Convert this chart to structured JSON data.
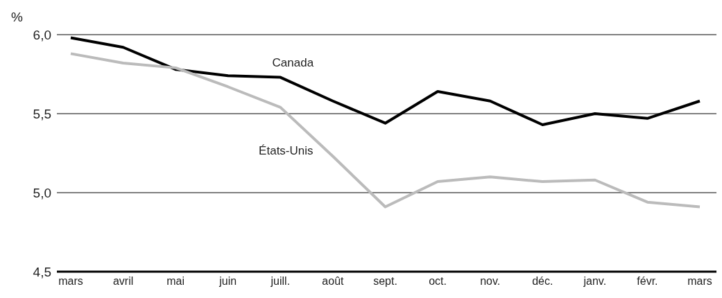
{
  "chart_data": {
    "type": "line",
    "ylabel": "%",
    "categories": [
      "mars",
      "avril",
      "mai",
      "juin",
      "juill.",
      "août",
      "sept.",
      "oct.",
      "nov.",
      "déc.",
      "janv.",
      "févr.",
      "mars"
    ],
    "series": [
      {
        "name": "Canada",
        "color": "#000000",
        "values": [
          5.98,
          5.92,
          5.78,
          5.74,
          5.73,
          5.58,
          5.44,
          5.64,
          5.58,
          5.43,
          5.5,
          5.47,
          5.58
        ]
      },
      {
        "name": "États-Unis",
        "color": "#bbbbbb",
        "values": [
          5.88,
          5.82,
          5.79,
          5.67,
          5.54,
          5.23,
          4.91,
          5.07,
          5.1,
          5.07,
          5.08,
          4.94,
          4.91
        ]
      }
    ],
    "ylim": [
      4.5,
      6.0
    ],
    "yticks": [
      {
        "value": 4.5,
        "label": "4,5"
      },
      {
        "value": 5.0,
        "label": "5,0"
      },
      {
        "value": 5.5,
        "label": "5,5"
      },
      {
        "value": 6.0,
        "label": "6,0"
      }
    ],
    "grid": "y",
    "legend": false,
    "marker": "none",
    "line_style": "solid"
  }
}
